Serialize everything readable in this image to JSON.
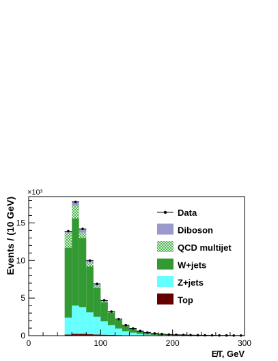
{
  "chart_data": {
    "type": "bar",
    "stacked": true,
    "xlabel": "E̸T, GeV",
    "ylabel": "Events / (10 GeV)",
    "y_multiplier": "×10³",
    "xlim": [
      0,
      300
    ],
    "ylim": [
      0,
      18.5
    ],
    "x_ticks": [
      0,
      100,
      200,
      300
    ],
    "y_ticks": [
      0,
      5,
      10,
      15
    ],
    "bins": {
      "low_edges": [
        50,
        60,
        70,
        80,
        90,
        100,
        110,
        120,
        130,
        140,
        150,
        160,
        170,
        180,
        190,
        200,
        210,
        220,
        230,
        240,
        250,
        260,
        270,
        280,
        290
      ],
      "width": 10
    },
    "series": [
      {
        "name": "Top",
        "color": "#660000",
        "values": [
          0.15,
          0.25,
          0.25,
          0.2,
          0.15,
          0.12,
          0.1,
          0.08,
          0.06,
          0.05,
          0.04,
          0.03,
          0.02,
          0.02,
          0.01,
          0.01,
          0.01,
          0.0,
          0.0,
          0.0,
          0.0,
          0.0,
          0.0,
          0.0,
          0.0
        ]
      },
      {
        "name": "Z+jets",
        "color": "#66ffff",
        "values": [
          2.25,
          3.75,
          3.55,
          2.9,
          2.35,
          1.78,
          1.3,
          0.87,
          0.54,
          0.35,
          0.21,
          0.12,
          0.08,
          0.05,
          0.04,
          0.03,
          0.02,
          0.01,
          0.01,
          0.01,
          0.0,
          0.0,
          0.0,
          0.0,
          0.0
        ]
      },
      {
        "name": "W+jets",
        "color": "#339933",
        "values": [
          9.3,
          11.6,
          9.2,
          6.1,
          3.9,
          2.55,
          1.65,
          1.15,
          0.75,
          0.5,
          0.35,
          0.25,
          0.18,
          0.13,
          0.1,
          0.08,
          0.07,
          0.06,
          0.05,
          0.04,
          0.04,
          0.03,
          0.03,
          0.02,
          0.02
        ]
      },
      {
        "name": "QCD multijet",
        "color": "#66cc66",
        "values": [
          2.0,
          1.7,
          0.7,
          0.5,
          0.3,
          0.15,
          0.1,
          0.05,
          0.03,
          0.02,
          0.01,
          0.01,
          0.0,
          0.0,
          0.0,
          0.0,
          0.0,
          0.0,
          0.0,
          0.0,
          0.0,
          0.0,
          0.0,
          0.0,
          0.0
        ]
      },
      {
        "name": "Diboson",
        "color": "#9999cc",
        "values": [
          0.2,
          0.5,
          0.5,
          0.3,
          0.2,
          0.1,
          0.05,
          0.03,
          0.02,
          0.02,
          0.01,
          0.01,
          0.01,
          0.01,
          0.0,
          0.0,
          0.0,
          0.0,
          0.0,
          0.0,
          0.0,
          0.0,
          0.0,
          0.0,
          0.0
        ]
      }
    ],
    "data_points": {
      "name": "Data",
      "x": [
        55,
        65,
        75,
        85,
        95,
        105,
        115,
        125,
        135,
        145,
        155,
        165,
        175,
        185,
        195,
        205,
        215,
        225,
        235,
        245,
        255,
        265,
        275,
        285,
        295
      ],
      "y": [
        13.9,
        17.8,
        14.2,
        10.0,
        6.9,
        4.7,
        3.2,
        2.2,
        1.4,
        0.95,
        0.62,
        0.42,
        0.29,
        0.21,
        0.15,
        0.12,
        0.1,
        0.07,
        0.06,
        0.05,
        0.04,
        0.03,
        0.03,
        0.02,
        0.02
      ]
    },
    "legend": {
      "placement": "top-right",
      "entries": [
        {
          "label": "Data",
          "kind": "marker"
        },
        {
          "label": "Diboson",
          "kind": "fill",
          "color": "#9999cc"
        },
        {
          "label": "QCD multijet",
          "kind": "hatch",
          "color": "#66cc66"
        },
        {
          "label": "W+jets",
          "kind": "fill",
          "color": "#339933"
        },
        {
          "label": "Z+jets",
          "kind": "fill",
          "color": "#66ffff"
        },
        {
          "label": "Top",
          "kind": "fill",
          "color": "#660000"
        }
      ]
    }
  }
}
